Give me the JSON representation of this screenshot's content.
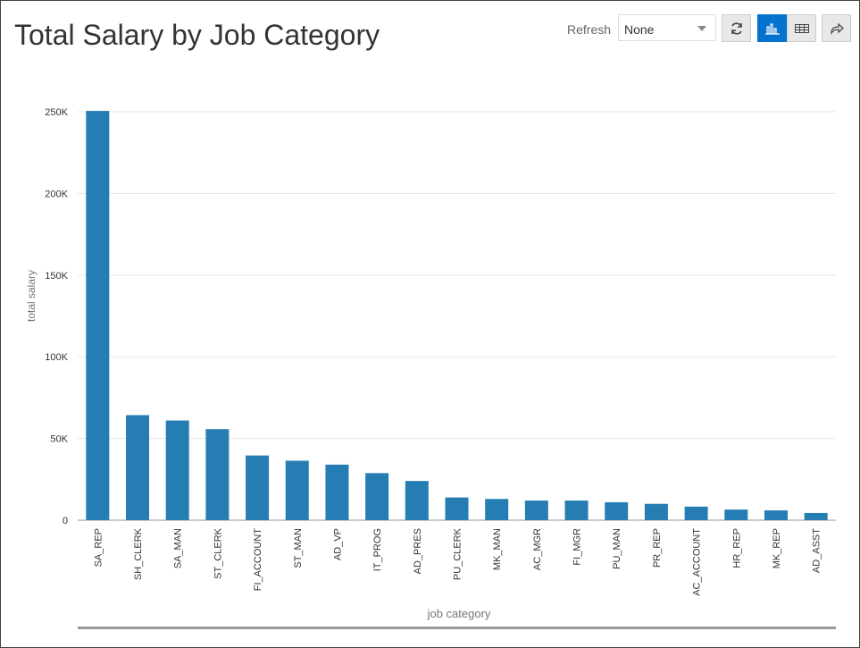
{
  "header": {
    "title": "Total Salary by Job Category",
    "refresh_label": "Refresh",
    "refresh_value": "None"
  },
  "toolbar": {
    "icons": [
      "refresh-icon",
      "chart-view-icon",
      "table-view-icon",
      "share-icon"
    ],
    "active": "chart-view"
  },
  "colors": {
    "bar": "#267db3",
    "accent": "#0572ce"
  },
  "chart_data": {
    "type": "bar",
    "title": "",
    "xlabel": "job category",
    "ylabel": "total salary",
    "ylim": [
      0,
      250000
    ],
    "yticks": [
      0,
      50000,
      100000,
      150000,
      200000,
      250000
    ],
    "ytick_labels": [
      "0",
      "50K",
      "100K",
      "150K",
      "200K",
      "250K"
    ],
    "grid": true,
    "categories": [
      "SA_REP",
      "SH_CLERK",
      "SA_MAN",
      "ST_CLERK",
      "FI_ACCOUNT",
      "ST_MAN",
      "AD_VP",
      "IT_PROG",
      "AD_PRES",
      "PU_CLERK",
      "MK_MAN",
      "AC_MGR",
      "FI_MGR",
      "PU_MAN",
      "PR_REP",
      "AC_ACCOUNT",
      "HR_REP",
      "MK_REP",
      "AD_ASST"
    ],
    "values": [
      250500,
      64300,
      61000,
      55700,
      39600,
      36400,
      34000,
      28800,
      24000,
      13900,
      13000,
      12008,
      12008,
      11000,
      10000,
      8300,
      6500,
      6000,
      4400
    ]
  }
}
